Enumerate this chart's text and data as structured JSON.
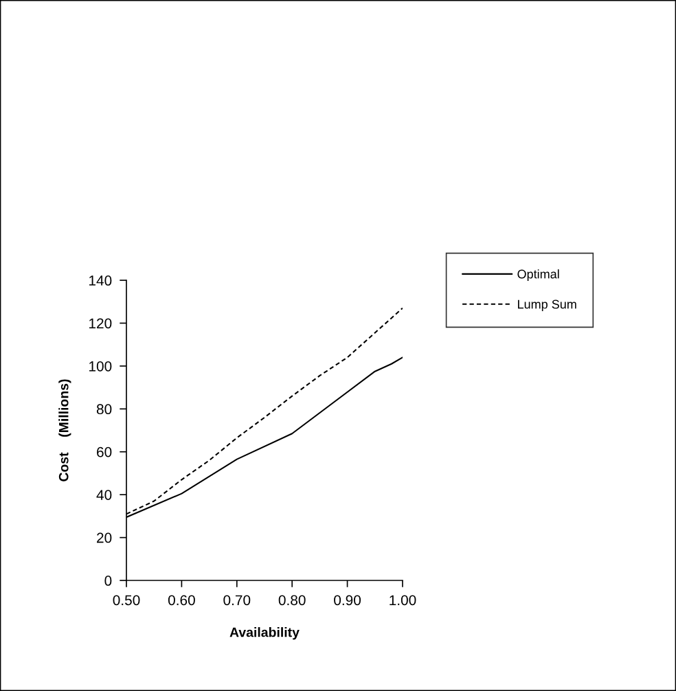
{
  "chart_data": {
    "type": "line",
    "xlabel": "Availability",
    "ylabel": "Cost    (Millions)",
    "series": [
      {
        "name": "Optimal",
        "color": "#000000",
        "line_style": "solid",
        "x": [
          0.5,
          0.6,
          0.7,
          0.8,
          0.95,
          0.98,
          1.0
        ],
        "values": [
          29.5,
          40.5,
          56.5,
          68.5,
          97.5,
          101,
          104
        ]
      },
      {
        "name": "Lump Sum",
        "color": "#000000",
        "line_style": "dashed",
        "x": [
          0.5,
          0.55,
          0.6,
          0.65,
          0.7,
          0.75,
          0.8,
          0.85,
          0.9,
          0.95,
          1.0
        ],
        "values": [
          31,
          37,
          47,
          56,
          66.5,
          76,
          86,
          95.5,
          104,
          115.5,
          127
        ]
      }
    ],
    "xlim": [
      0.5,
      1.0
    ],
    "xticks": [
      {
        "value": 0.5,
        "label": "0.50"
      },
      {
        "value": 0.6,
        "label": "0.60"
      },
      {
        "value": 0.7,
        "label": "0.70"
      },
      {
        "value": 0.8,
        "label": "0.80"
      },
      {
        "value": 0.9,
        "label": "0.90"
      },
      {
        "value": 1.0,
        "label": "1.00"
      }
    ],
    "ylim": [
      0,
      140
    ],
    "yticks": [
      0,
      20,
      40,
      60,
      80,
      100,
      120,
      140
    ],
    "grid": false,
    "legend": "right"
  }
}
